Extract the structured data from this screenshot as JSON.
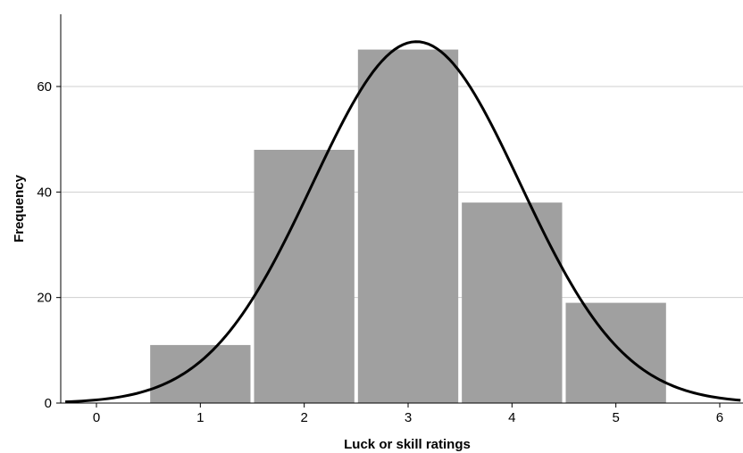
{
  "chart_data": {
    "type": "bar",
    "title": "",
    "xlabel": "Luck or skill ratings",
    "ylabel": "Frequency",
    "categories": [
      "1",
      "2",
      "3",
      "4",
      "5"
    ],
    "x": [
      1,
      2,
      3,
      4,
      5
    ],
    "values": [
      11,
      48,
      67,
      38,
      19
    ],
    "xlim": [
      -0.3,
      6.2
    ],
    "ylim": [
      0,
      73
    ],
    "x_ticks": [
      "0",
      "1",
      "2",
      "3",
      "4",
      "5",
      "6"
    ],
    "y_ticks": [
      "0",
      "20",
      "40",
      "60"
    ],
    "grid": "horizontal",
    "bar_color": "#a0a0a0",
    "curve": {
      "type": "normal",
      "mean": 3.08,
      "sd": 1.0,
      "peak": 68.5,
      "color": "#000000"
    }
  }
}
